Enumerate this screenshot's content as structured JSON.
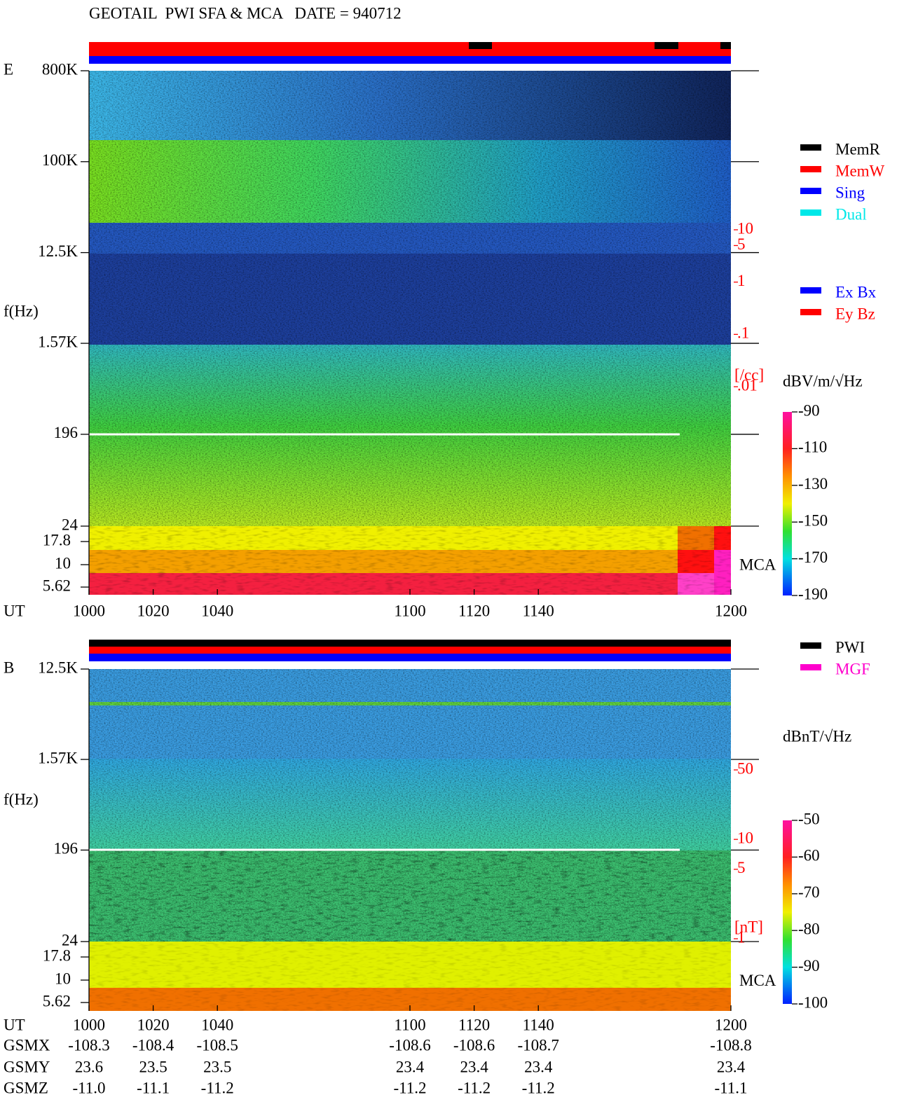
{
  "title": "GEOTAIL  PWI SFA & MCA   DATE = 940712",
  "chart_data": [
    {
      "type": "spectrogram",
      "panel_label": "E",
      "ylabel": "f(Hz)",
      "xlabel": "UT",
      "xlim": [
        1000,
        1200
      ],
      "xticks": [
        1000,
        1020,
        1040,
        1100,
        1120,
        1140,
        1200
      ],
      "ylim": [
        24,
        800000
      ],
      "log_y": true,
      "yticks": [
        {
          "value": 800000,
          "label": "800K"
        },
        {
          "value": 100000,
          "label": "100K"
        },
        {
          "value": 12500,
          "label": "12.5K"
        },
        {
          "value": 1570,
          "label": "1.57K"
        },
        196,
        24
      ],
      "mca_label": "MCA",
      "mca_channels": [
        17.8,
        10,
        5.62
      ],
      "y2lim": [
        0.01,
        10
      ],
      "log_y2": true,
      "y2color": "#ff0000",
      "y2ticks": [
        10,
        5,
        1,
        {
          "value": 0.1,
          "label": ".1"
        },
        {
          "value": 0.01,
          "label": ".01"
        }
      ],
      "y2label": "[/cc]",
      "colorbar": {
        "label": "dBV/m/√Hz",
        "lim": [
          -190,
          -90
        ],
        "ticks": [
          -90,
          -110,
          -130,
          -150,
          -170,
          -190
        ]
      },
      "legends": [
        [
          {
            "name": "MemR",
            "color": "#000000"
          },
          {
            "name": "MemW",
            "color": "#ff0000"
          },
          {
            "name": "Sing",
            "color": "#0000ff"
          },
          {
            "name": "Dual",
            "color": "#00e8e8"
          }
        ],
        [
          {
            "name": "Ex Bx",
            "color": "#0000ff"
          },
          {
            "name": "Ey Bz",
            "color": "#ff0000"
          }
        ]
      ]
    },
    {
      "type": "spectrogram",
      "panel_label": "B",
      "ylabel": "f(Hz)",
      "xlabel": "UT",
      "xlim": [
        1000,
        1200
      ],
      "xticks": [
        1000,
        1020,
        1040,
        1100,
        1120,
        1140,
        1200
      ],
      "ylim": [
        24,
        12500
      ],
      "log_y": true,
      "yticks": [
        {
          "value": 12500,
          "label": "12.5K"
        },
        {
          "value": 1570,
          "label": "1.57K"
        },
        196,
        24
      ],
      "mca_label": "MCA",
      "mca_channels": [
        17.8,
        10,
        5.62
      ],
      "y2lim": [
        1,
        50
      ],
      "log_y2": true,
      "y2color": "#ff0000",
      "y2ticks": [
        50,
        10,
        5,
        1
      ],
      "y2label": "[nT]",
      "colorbar": {
        "label": "dBnT/√Hz",
        "lim": [
          -100,
          -50
        ],
        "ticks": [
          -50,
          -60,
          -70,
          -80,
          -90,
          -100
        ]
      },
      "legends": [
        [
          {
            "name": "PWI",
            "color": "#000000"
          },
          {
            "name": "MGF",
            "color": "#ff00cc"
          }
        ]
      ]
    }
  ],
  "orbit": [
    {
      "label": "GSMX",
      "values": [
        "-108.3",
        "-108.4",
        "-108.5",
        "-108.6",
        "-108.6",
        "-108.7",
        "-108.8"
      ]
    },
    {
      "label": "GSMY",
      "values": [
        "23.6",
        "23.5",
        "23.5",
        "23.4",
        "23.4",
        "23.4",
        "23.4"
      ]
    },
    {
      "label": "GSMZ",
      "values": [
        "-11.0",
        "-11.1",
        "-11.2",
        "-11.2",
        "-11.2",
        "-11.2",
        "-11.1"
      ]
    }
  ]
}
